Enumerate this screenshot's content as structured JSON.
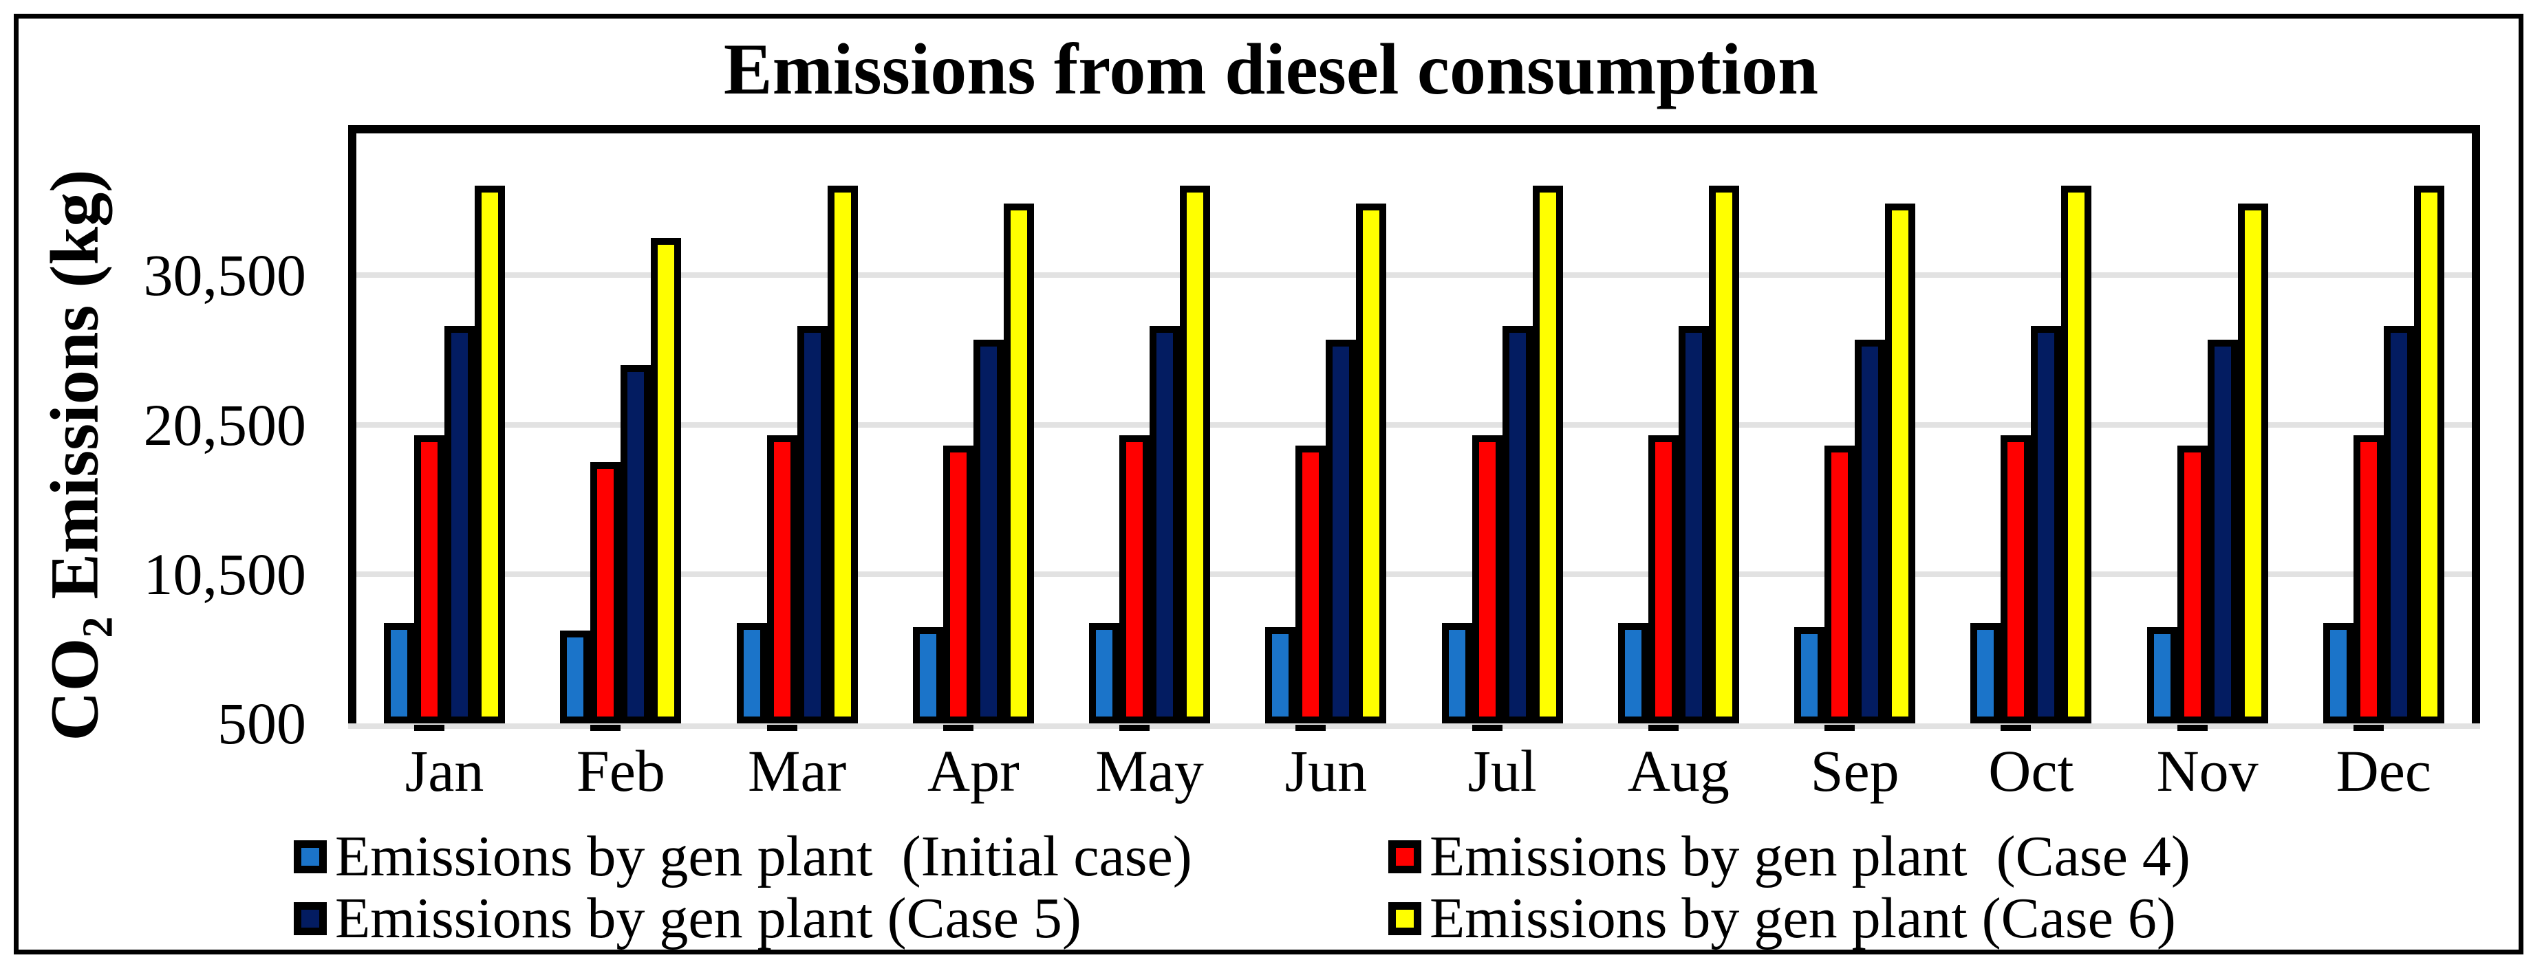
{
  "figure": {
    "title": "Emissions from diesel consumption"
  },
  "chart_data": {
    "type": "bar",
    "title": "Emissions from diesel consumption",
    "xlabel": "",
    "ylabel": "CO2 Emissions (kg)",
    "ylabel_prefix": "CO",
    "ylabel_sub": "2",
    "ylabel_suffix": " Emissions (kg)",
    "categories": [
      "Jan",
      "Feb",
      "Mar",
      "Apr",
      "May",
      "Jun",
      "Jul",
      "Aug",
      "Sep",
      "Oct",
      "Nov",
      "Dec"
    ],
    "y_ticks": [
      {
        "label": "500",
        "value": 500
      },
      {
        "label": "10,500",
        "value": 10500
      },
      {
        "label": "20,500",
        "value": 20500
      },
      {
        "label": "30,500",
        "value": 30500
      }
    ],
    "ylim": [
      500,
      40000
    ],
    "grid": "horizontal",
    "grid_color": "#E2E2E2",
    "axis_line_color": "#E2E2E2",
    "bar_border_color": "#000000",
    "legend_position": "bottom-two-columns",
    "series": [
      {
        "name": "Emissions by gen plant  (Initial case)",
        "color": "#1B74C9",
        "values": [
          7200,
          6700,
          7200,
          6950,
          7200,
          6950,
          7200,
          7200,
          6950,
          7200,
          6950,
          7200
        ]
      },
      {
        "name": "Emissions by gen plant  (Case 4)",
        "color": "#FF0000",
        "values": [
          19800,
          18000,
          19800,
          19100,
          19800,
          19100,
          19800,
          19800,
          19100,
          19800,
          19100,
          19800
        ]
      },
      {
        "name": "Emissions by gen plant (Case 5)",
        "color": "#031C61",
        "values": [
          27100,
          24500,
          27100,
          26200,
          27100,
          26200,
          27100,
          27100,
          26200,
          27100,
          26200,
          27100
        ]
      },
      {
        "name": "Emissions by gen plant (Case 6)",
        "color": "#FFFF00",
        "values": [
          36500,
          33000,
          36500,
          35300,
          36500,
          35300,
          36500,
          36500,
          35300,
          36500,
          35300,
          36500
        ]
      }
    ]
  }
}
